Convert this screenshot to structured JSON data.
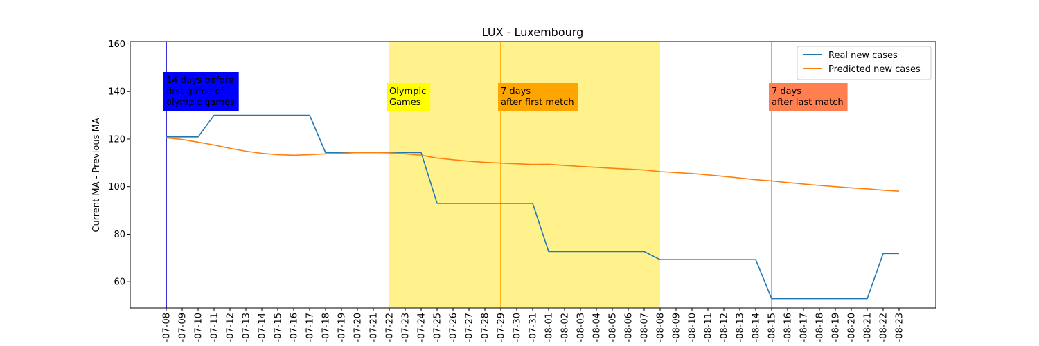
{
  "chart_data": {
    "type": "line",
    "title": "LUX - Luxembourg",
    "ylabel": "Current MA - Previous MA",
    "xlabel": "",
    "ylim": [
      49,
      161
    ],
    "yticks": [
      60,
      80,
      100,
      120,
      140,
      160
    ],
    "x": [
      "2021-07-08",
      "2021-07-09",
      "2021-07-10",
      "2021-07-11",
      "2021-07-12",
      "2021-07-13",
      "2021-07-14",
      "2021-07-15",
      "2021-07-16",
      "2021-07-17",
      "2021-07-18",
      "2021-07-19",
      "2021-07-20",
      "2021-07-21",
      "2021-07-22",
      "2021-07-23",
      "2021-07-24",
      "2021-07-25",
      "2021-07-26",
      "2021-07-27",
      "2021-07-28",
      "2021-07-29",
      "2021-07-30",
      "2021-07-31",
      "2021-08-01",
      "2021-08-02",
      "2021-08-03",
      "2021-08-04",
      "2021-08-05",
      "2021-08-06",
      "2021-08-07",
      "2021-08-08",
      "2021-08-09",
      "2021-08-10",
      "2021-08-11",
      "2021-08-12",
      "2021-08-13",
      "2021-08-14",
      "2021-08-15",
      "2021-08-16",
      "2021-08-17",
      "2021-08-18",
      "2021-08-19",
      "2021-08-20",
      "2021-08-21",
      "2021-08-22",
      "2021-08-23"
    ],
    "tick_labels": [
      "-07-08",
      "-07-09",
      "-07-10",
      "-07-11",
      "-07-12",
      "-07-13",
      "-07-14",
      "-07-15",
      "-07-16",
      "-07-17",
      "-07-18",
      "-07-19",
      "-07-20",
      "-07-21",
      "-07-22",
      "-07-23",
      "-07-24",
      "-07-25",
      "-07-26",
      "-07-27",
      "-07-28",
      "-07-29",
      "-07-30",
      "-07-31",
      "-08-01",
      "-08-02",
      "-08-03",
      "-08-04",
      "-08-05",
      "-08-06",
      "-08-07",
      "-08-08",
      "-08-09",
      "-08-10",
      "-08-11",
      "-08-12",
      "-08-13",
      "-08-14",
      "-08-15",
      "-08-16",
      "-08-17",
      "-08-18",
      "-08-19",
      "-08-20",
      "-08-21",
      "-08-22",
      "-08-23"
    ],
    "series": [
      {
        "name": "Real new cases",
        "color": "#1f77b4",
        "values": [
          120.9,
          120.9,
          120.9,
          130,
          130,
          130,
          130,
          130,
          130,
          130,
          114.3,
          114.3,
          114.3,
          114.3,
          114.3,
          114.3,
          114.3,
          93,
          93,
          93,
          93,
          93,
          93,
          93,
          72.7,
          72.7,
          72.7,
          72.7,
          72.7,
          72.7,
          72.7,
          69.3,
          69.3,
          69.3,
          69.3,
          69.3,
          69.3,
          69.3,
          52.9,
          52.9,
          52.9,
          52.9,
          52.9,
          52.9,
          52.9,
          71.9,
          71.9
        ]
      },
      {
        "name": "Predicted new cases",
        "color": "#ff7f0e",
        "values": [
          120.5,
          119.8,
          118.7,
          117.5,
          116.1,
          114.9,
          114.0,
          113.4,
          113.2,
          113.4,
          113.8,
          114.0,
          114.3,
          114.3,
          114.2,
          113.8,
          113.2,
          112.0,
          111.3,
          110.7,
          110.2,
          109.9,
          109.6,
          109.3,
          109.4,
          108.9,
          108.5,
          108.1,
          107.7,
          107.4,
          107.0,
          106.3,
          105.9,
          105.5,
          104.9,
          104.3,
          103.6,
          102.9,
          102.4,
          101.7,
          101.1,
          100.5,
          100.0,
          99.5,
          99.1,
          98.5,
          98.1
        ]
      }
    ],
    "shaded_region": {
      "start": "2021-07-22",
      "end": "2021-08-08",
      "color": "#fff080"
    },
    "vlines": [
      {
        "x": "2021-07-08",
        "color": "#0000cc"
      },
      {
        "x": "2021-07-29",
        "color": "#ffa500"
      },
      {
        "x": "2021-08-15",
        "color": "#ff7f50"
      }
    ],
    "annotations": [
      {
        "x": "2021-07-08",
        "lines": [
          "14 days before",
          "first game of",
          "olympic games"
        ],
        "bg": "#0000ff",
        "fg": "#ffffff"
      },
      {
        "x": "2021-07-22",
        "lines": [
          "Olympic",
          "Games"
        ],
        "bg": "#ffff00",
        "fg": "#000000"
      },
      {
        "x": "2021-07-29",
        "lines": [
          "7 days",
          "after first metch"
        ],
        "bg": "#ffa500",
        "fg": "#000000"
      },
      {
        "x": "2021-08-15",
        "lines": [
          "7 days",
          "after last match"
        ],
        "bg": "#ff7f50",
        "fg": "#000000"
      }
    ],
    "legend": {
      "position": "top-right",
      "entries": [
        "Real new cases",
        "Predicted new cases"
      ]
    },
    "grid": false
  }
}
